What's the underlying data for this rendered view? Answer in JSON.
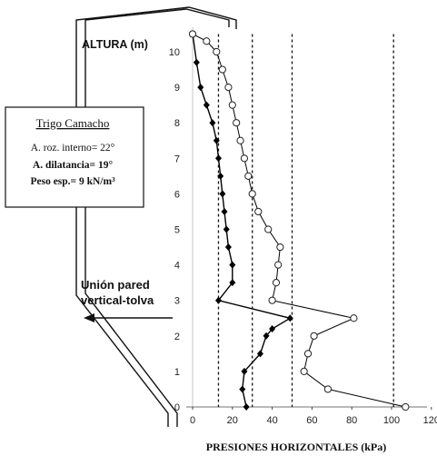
{
  "chart_data": {
    "type": "line",
    "xlabel": "PRESIONES HORIZONTALES (kPa)",
    "ylabel": "ALTURA (m)",
    "xlim": [
      0,
      120
    ],
    "ylim": [
      0,
      10.5
    ],
    "x_ticks": [
      0,
      20,
      40,
      60,
      80,
      100,
      120
    ],
    "y_ticks": [
      0,
      1,
      2,
      3,
      4,
      5,
      6,
      7,
      8,
      9,
      10
    ],
    "grid": false,
    "series": [
      {
        "marker": "filled-diamond",
        "color": "#000000",
        "x": [
          27,
          25,
          26,
          34,
          37,
          40,
          49,
          13,
          20,
          20,
          18,
          17,
          16,
          15,
          14,
          13,
          12,
          10,
          7,
          4,
          2,
          0
        ],
        "y": [
          0,
          0.5,
          1,
          1.5,
          2,
          2.2,
          2.5,
          3,
          3.5,
          4,
          4.5,
          5,
          5.5,
          6,
          6.5,
          7,
          7.5,
          8,
          8.5,
          9,
          9.7,
          10.5
        ]
      },
      {
        "marker": "open-circle",
        "color": "#000000",
        "x": [
          107,
          68,
          56,
          58,
          61,
          81,
          40,
          42,
          43,
          44,
          38,
          33,
          30,
          28,
          26,
          24,
          22,
          20,
          18,
          15,
          12,
          7,
          0
        ],
        "y": [
          0,
          0.5,
          1,
          1.5,
          2,
          2.5,
          3,
          3.5,
          4,
          4.5,
          5,
          5.5,
          6,
          6.5,
          7,
          7.5,
          8,
          8.5,
          9,
          9.5,
          10,
          10.3,
          10.5
        ]
      }
    ],
    "reference_lines_x": [
      13,
      30,
      50,
      101
    ],
    "annotations": {
      "title": "Trigo Camacho",
      "line1": "A. roz. interno= 22°",
      "line2": "A. dilatancia= 19°",
      "line3": "Peso esp.= 9 kN/m³",
      "union_line1": "Unión pared",
      "union_line2": "vertical-tolva"
    }
  }
}
